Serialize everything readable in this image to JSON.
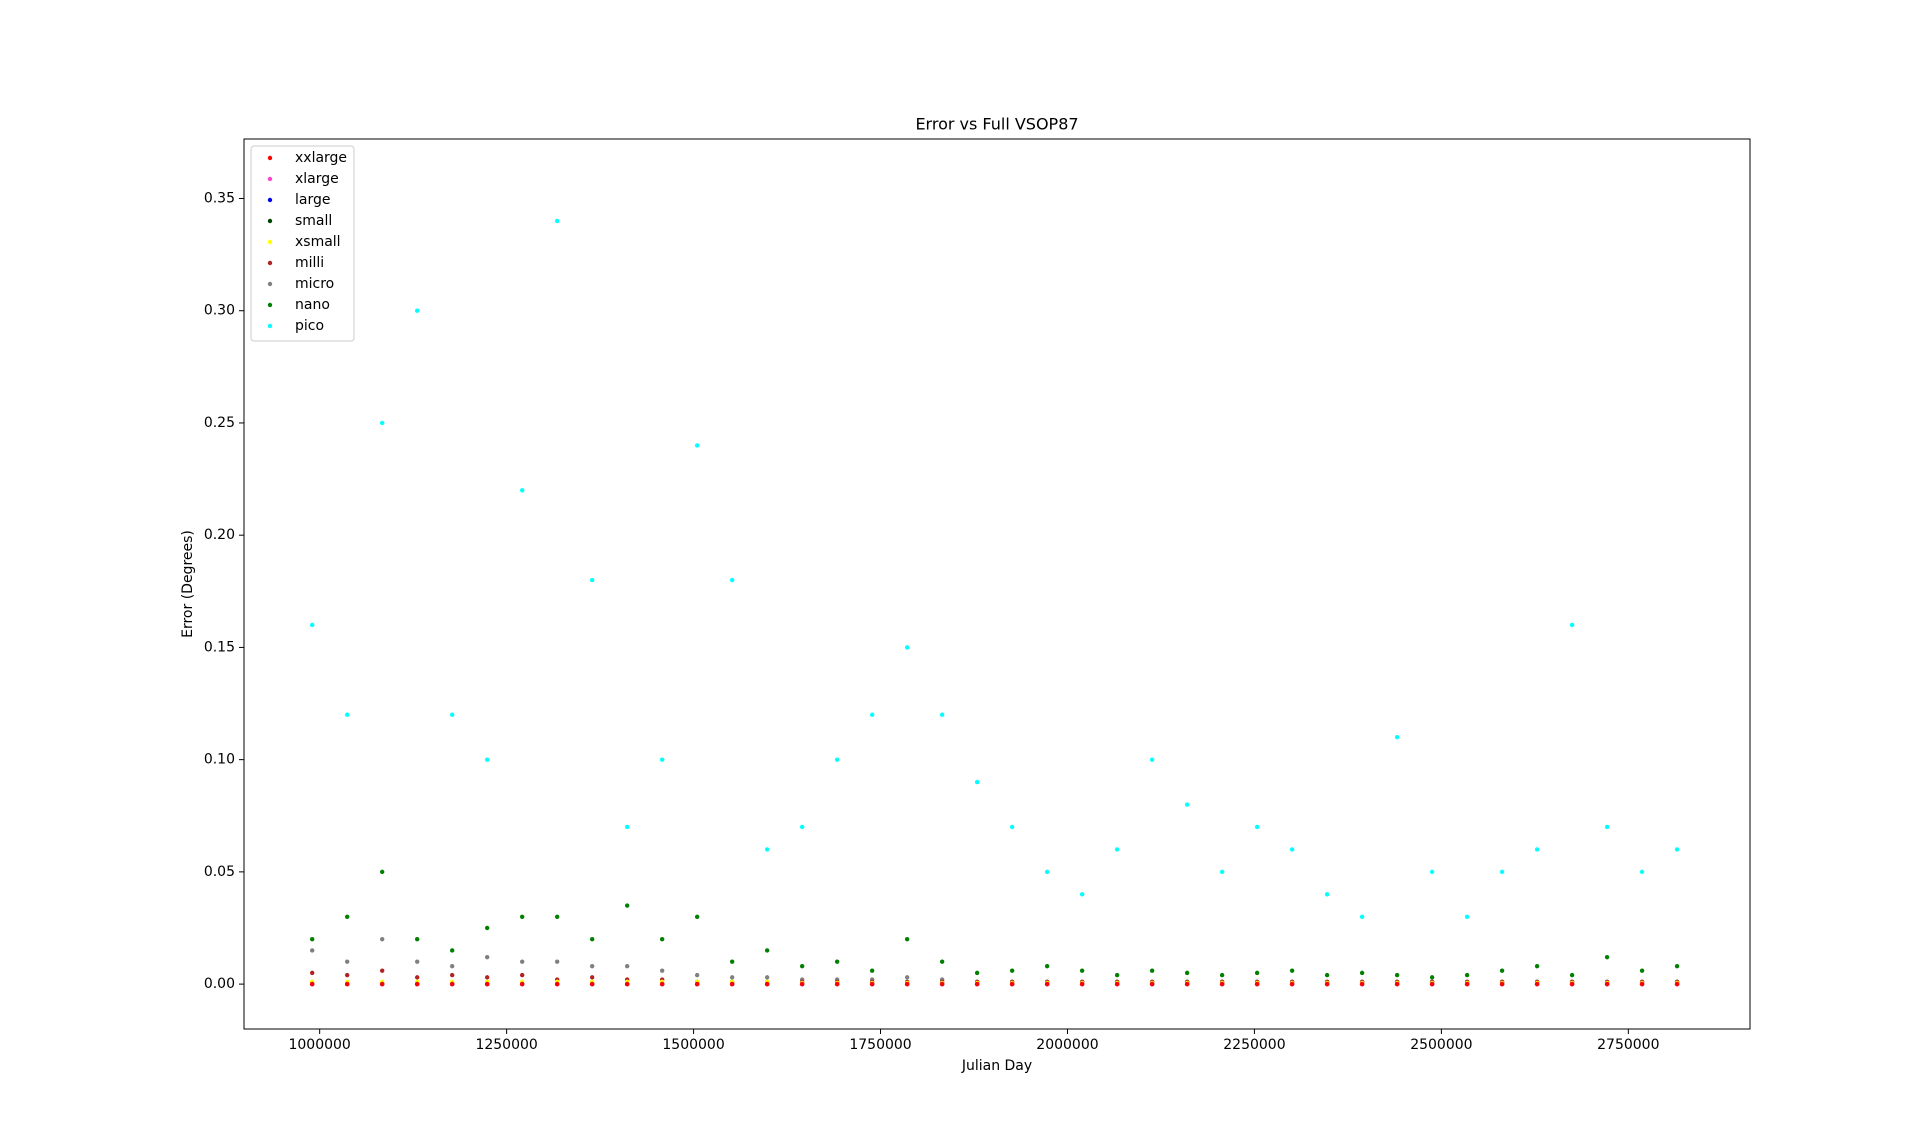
{
  "chart_data": {
    "type": "scatter",
    "title": "Error vs Full VSOP87",
    "x_label": "Julian Day",
    "y_label": "Error (Degrees)",
    "x": [
      990000,
      1036800,
      1083600,
      1130400,
      1177200,
      1224000,
      1270800,
      1317600,
      1364400,
      1411200,
      1458000,
      1504800,
      1551600,
      1598400,
      1645200,
      1692000,
      1738800,
      1785600,
      1832400,
      1879200,
      1926000,
      1972800,
      2019600,
      2066400,
      2113200,
      2160000,
      2206800,
      2253600,
      2300400,
      2347200,
      2394000,
      2440800,
      2487600,
      2534400,
      2581200,
      2628000,
      2674800,
      2721600,
      2768400,
      2815200
    ],
    "series": [
      {
        "name": "xxlarge",
        "color": "#ff0000",
        "values": [
          0,
          0,
          0,
          0,
          0,
          0,
          0,
          0,
          0,
          0,
          0,
          0,
          0,
          0,
          0,
          0,
          0,
          0,
          0,
          0,
          0,
          0,
          0,
          0,
          0,
          0,
          0,
          0,
          0,
          0,
          0,
          0,
          0,
          0,
          0,
          0,
          0,
          0,
          0,
          0
        ]
      },
      {
        "name": "xlarge",
        "color": "#ff44cc",
        "values": [
          0,
          0,
          0,
          0,
          0,
          0,
          0,
          0,
          0,
          0,
          0,
          0,
          0,
          0,
          0,
          0,
          0,
          0,
          0,
          0,
          0,
          0,
          0,
          0,
          0,
          0,
          0,
          0,
          0,
          0,
          0,
          0,
          0,
          0,
          0,
          0,
          0,
          0,
          0,
          0
        ]
      },
      {
        "name": "large",
        "color": "#0000ff",
        "values": [
          0,
          0,
          0,
          0,
          0,
          0,
          0,
          0,
          0,
          0,
          0,
          0,
          0,
          0,
          0,
          0,
          0,
          0,
          0,
          0,
          0,
          0,
          0,
          0,
          0,
          0,
          0,
          0,
          0,
          0,
          0,
          0,
          0,
          0,
          0,
          0,
          0,
          0,
          0,
          0
        ]
      },
      {
        "name": "small",
        "color": "#004400",
        "values": [
          0,
          0,
          0,
          0,
          0,
          0,
          0,
          0,
          0,
          0,
          0,
          0,
          0,
          0,
          0,
          0,
          0,
          0,
          0,
          0,
          0,
          0,
          0,
          0,
          0,
          0,
          0,
          0,
          0,
          0,
          0,
          0,
          0,
          0,
          0,
          0,
          0,
          0,
          0,
          0
        ]
      },
      {
        "name": "xsmall",
        "color": "#ffff00",
        "values": [
          0.001,
          0.001,
          0.001,
          0.001,
          0.001,
          0.001,
          0.001,
          0.001,
          0.001,
          0.001,
          0.001,
          0.001,
          0.001,
          0.001,
          0.0005,
          0.0005,
          0.0005,
          0.0005,
          0.0005,
          0.0005,
          0.0005,
          0.0005,
          0.0005,
          0.0005,
          0.0005,
          0.0005,
          0.0005,
          0.0005,
          0.0005,
          0.0005,
          0.0005,
          0.0005,
          0.0005,
          0.0005,
          0.0005,
          0.0005,
          0.0005,
          0.0005,
          0.0005,
          0.0005
        ]
      },
      {
        "name": "milli",
        "color": "#b22222",
        "values": [
          0.005,
          0.004,
          0.006,
          0.003,
          0.004,
          0.003,
          0.004,
          0.002,
          0.003,
          0.002,
          0.002,
          0.001,
          0.001,
          0.001,
          0.001,
          0.001,
          0.001,
          0.001,
          0.001,
          0.001,
          0.001,
          0.001,
          0.001,
          0.001,
          0.001,
          0.001,
          0.001,
          0.001,
          0.001,
          0.001,
          0.001,
          0.001,
          0.001,
          0.001,
          0.001,
          0.001,
          0.001,
          0.001,
          0.001,
          0.001
        ]
      },
      {
        "name": "micro",
        "color": "#808080",
        "values": [
          0.015,
          0.01,
          0.02,
          0.01,
          0.008,
          0.012,
          0.01,
          0.01,
          0.008,
          0.008,
          0.006,
          0.004,
          0.003,
          0.003,
          0.002,
          0.002,
          0.002,
          0.003,
          0.002,
          0.001,
          0.001,
          0.001,
          0.001,
          0.001,
          0.001,
          0.001,
          0.001,
          0.001,
          0.001,
          0.001,
          0.001,
          0.001,
          0.001,
          0.001,
          0.001,
          0.001,
          0.001,
          0.001,
          0.001,
          0.001
        ]
      },
      {
        "name": "nano",
        "color": "#008000",
        "values": [
          0.02,
          0.03,
          0.05,
          0.02,
          0.015,
          0.025,
          0.03,
          0.03,
          0.02,
          0.035,
          0.02,
          0.03,
          0.01,
          0.015,
          0.008,
          0.01,
          0.006,
          0.02,
          0.01,
          0.005,
          0.006,
          0.008,
          0.006,
          0.004,
          0.006,
          0.005,
          0.004,
          0.005,
          0.006,
          0.004,
          0.005,
          0.004,
          0.003,
          0.004,
          0.006,
          0.008,
          0.004,
          0.012,
          0.006,
          0.008
        ]
      },
      {
        "name": "pico",
        "color": "#00ffff",
        "values": [
          0.16,
          0.12,
          0.25,
          0.3,
          0.12,
          0.1,
          0.22,
          0.34,
          0.18,
          0.07,
          0.1,
          0.24,
          0.18,
          0.06,
          0.07,
          0.1,
          0.12,
          0.15,
          0.12,
          0.09,
          0.07,
          0.05,
          0.04,
          0.06,
          0.1,
          0.08,
          0.05,
          0.07,
          0.06,
          0.04,
          0.03,
          0.11,
          0.05,
          0.03,
          0.05,
          0.06,
          0.16,
          0.07,
          0.05,
          0.06
        ]
      }
    ],
    "xlim": [
      898800,
      2912700
    ],
    "ylim": [
      -0.02,
      0.3765
    ],
    "xticks": [
      1000000,
      1250000,
      1500000,
      1750000,
      2000000,
      2250000,
      2500000,
      2750000
    ],
    "yticks": [
      {
        "value": 0,
        "label": "0.00"
      },
      {
        "value": 0.05,
        "label": "0.05"
      },
      {
        "value": 0.1,
        "label": "0.10"
      },
      {
        "value": 0.15,
        "label": "0.15"
      },
      {
        "value": 0.2,
        "label": "0.20"
      },
      {
        "value": 0.25,
        "label": "0.25"
      },
      {
        "value": 0.3,
        "label": "0.30"
      },
      {
        "value": 0.35,
        "label": "0.35"
      }
    ],
    "legend": "upper left",
    "grid": false
  }
}
